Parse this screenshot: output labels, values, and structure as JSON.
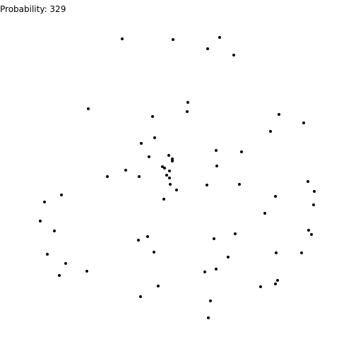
{
  "label": {
    "name": "Probability",
    "value": "329"
  },
  "colors": {
    "background": "#ffffff",
    "dots": "#000000"
  }
}
